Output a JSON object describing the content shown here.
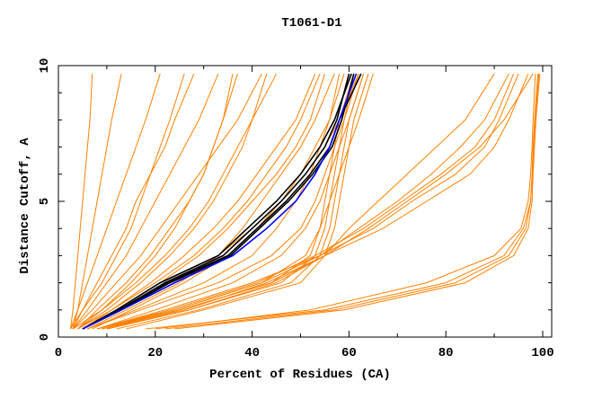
{
  "chart_data": {
    "type": "line",
    "title": "T1061-D1",
    "xlabel": "Percent of Residues (CA)",
    "ylabel": "Distance Cutoff, A",
    "xlim": [
      0,
      100
    ],
    "ylim": [
      0,
      10
    ],
    "xticks": [
      "0",
      "20",
      "40",
      "60",
      "80",
      "100"
    ],
    "yticks": [
      "0",
      "5",
      "10"
    ],
    "grid": false,
    "colors": {
      "models": "#ff8000",
      "highlight_dark": "#000000",
      "highlight_blue": "#0000ff"
    },
    "y": [
      0.3,
      1,
      2,
      3,
      4,
      5,
      6,
      7,
      8,
      9.7
    ],
    "orange_series": [
      [
        2.5,
        3,
        3.5,
        4,
        4.5,
        5,
        5.5,
        6,
        6.5,
        7
      ],
      [
        2.5,
        4,
        6,
        8,
        10,
        12,
        14,
        16,
        18,
        21
      ],
      [
        3,
        5,
        8,
        11,
        14,
        16,
        19,
        22,
        24,
        28
      ],
      [
        3,
        4,
        5,
        6,
        7,
        8,
        9,
        10,
        11,
        13
      ],
      [
        2.5,
        5,
        9,
        12,
        15,
        17,
        19,
        21,
        23,
        26
      ],
      [
        3,
        6,
        10,
        14,
        17,
        20,
        23,
        26,
        29,
        33
      ],
      [
        4,
        8,
        14,
        19,
        23,
        27,
        30,
        32,
        34,
        36
      ],
      [
        4,
        10,
        17,
        23,
        28,
        32,
        35,
        38,
        40,
        43
      ],
      [
        5,
        11,
        19,
        26,
        32,
        37,
        41,
        45,
        49,
        53
      ],
      [
        5,
        12,
        21,
        29,
        35,
        40,
        45,
        49,
        52,
        55
      ],
      [
        6,
        14,
        25,
        33,
        38,
        42,
        46,
        50,
        53,
        57
      ],
      [
        3,
        9,
        16,
        22,
        27,
        31,
        34,
        37,
        40,
        45
      ],
      [
        7,
        15,
        26,
        35,
        41,
        46,
        50,
        53,
        56,
        59
      ],
      [
        4,
        9,
        15,
        20,
        24,
        27,
        30,
        32,
        34,
        37
      ],
      [
        6,
        16,
        30,
        40,
        45,
        49,
        52,
        54,
        56,
        58
      ],
      [
        5,
        13,
        24,
        33,
        40,
        46,
        51,
        55,
        58,
        62
      ],
      [
        8,
        20,
        36,
        46,
        51,
        54,
        56,
        58,
        60,
        63
      ],
      [
        3,
        7,
        12,
        17,
        21,
        25,
        29,
        33,
        37,
        42
      ],
      [
        6,
        17,
        33,
        44,
        50,
        53,
        55,
        57,
        59,
        61
      ],
      [
        4,
        11,
        20,
        28,
        34,
        39,
        43,
        47,
        50,
        54
      ],
      [
        10,
        27,
        46,
        53,
        55,
        56,
        57,
        58,
        59,
        62
      ],
      [
        12,
        29,
        48,
        54,
        56,
        57,
        58,
        59,
        60,
        63
      ],
      [
        9,
        25,
        44,
        52,
        54,
        55,
        56,
        57,
        58,
        61
      ],
      [
        14,
        30,
        50,
        55,
        57,
        58,
        59,
        60,
        61,
        64
      ],
      [
        8,
        24,
        42,
        51,
        54,
        56,
        58,
        60,
        62,
        65
      ],
      [
        9,
        24,
        42,
        54,
        65,
        73,
        82,
        88,
        91,
        95
      ],
      [
        8,
        23,
        41,
        53,
        63,
        71,
        79,
        86,
        90,
        94
      ],
      [
        10,
        25,
        44,
        55,
        67,
        76,
        85,
        90,
        93,
        97
      ],
      [
        9,
        26,
        43,
        55,
        60,
        66,
        72,
        78,
        84,
        90
      ],
      [
        8,
        22,
        40,
        54,
        62,
        70,
        77,
        83,
        88,
        93
      ],
      [
        10,
        27,
        45,
        55,
        64,
        72,
        80,
        87,
        92,
        98
      ],
      [
        18,
        55,
        80,
        92,
        96,
        97.5,
        97.8,
        98,
        98.3,
        99
      ],
      [
        22,
        57,
        82,
        93,
        96.5,
        97.5,
        97.9,
        98.1,
        98.5,
        99.2
      ],
      [
        20,
        52,
        76,
        90,
        95.5,
        97,
        97.5,
        97.8,
        98,
        98.5
      ],
      [
        24,
        59,
        84,
        94,
        97,
        97.8,
        98,
        98.3,
        98.6,
        99.4
      ]
    ],
    "black_series": [
      [
        5,
        12.5,
        22,
        34,
        40,
        46,
        51,
        55,
        57.5,
        60
      ],
      [
        5,
        12,
        21,
        33,
        39,
        45,
        50,
        54,
        57,
        60.5
      ],
      [
        5,
        12.5,
        22.5,
        35,
        41,
        47,
        52,
        56,
        58,
        62.5
      ],
      [
        5,
        13,
        23,
        35.5,
        41.5,
        47.5,
        52.5,
        56.5,
        58.5,
        61
      ]
    ],
    "blue_series": [
      5,
      13,
      24,
      36,
      43,
      49,
      53,
      56,
      58,
      61.5
    ]
  }
}
